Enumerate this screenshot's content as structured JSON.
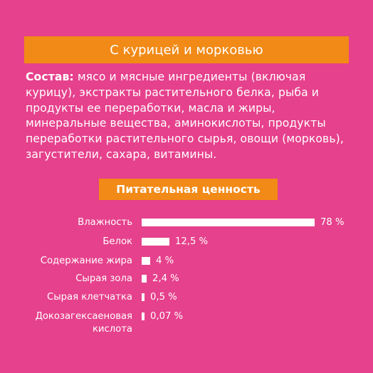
{
  "header": {
    "title": "С курицей и морковью"
  },
  "composition": {
    "label": "Состав:",
    "text": " мясо и мясные ингредиенты (включая курицу), экстракты растительного белка, рыба и продукты ее переработки, масла и жиры, минеральные вещества, аминокислоты, продукты переработки растительного сырья, овощи (морковь), загустители, сахара, витамины."
  },
  "nutrition": {
    "title": "Питательная ценность",
    "rows": [
      {
        "name": "Влажность",
        "value_label": "78 %",
        "value": 78
      },
      {
        "name": "Белок",
        "value_label": "12,5 %",
        "value": 12.5
      },
      {
        "name": "Содержание жира",
        "value_label": "4 %",
        "value": 4
      },
      {
        "name": "Сырая зола",
        "value_label": "2,4 %",
        "value": 2.4
      },
      {
        "name": "Сырая клетчатка",
        "value_label": "0,5 %",
        "value": 0.5
      },
      {
        "name": "Докозагексаеновая кислота",
        "value_label": "0,07 %",
        "value": 0.07
      }
    ]
  },
  "colors": {
    "background": "#e6418c",
    "banner": "#f28a17",
    "bar": "#ffffff"
  }
}
